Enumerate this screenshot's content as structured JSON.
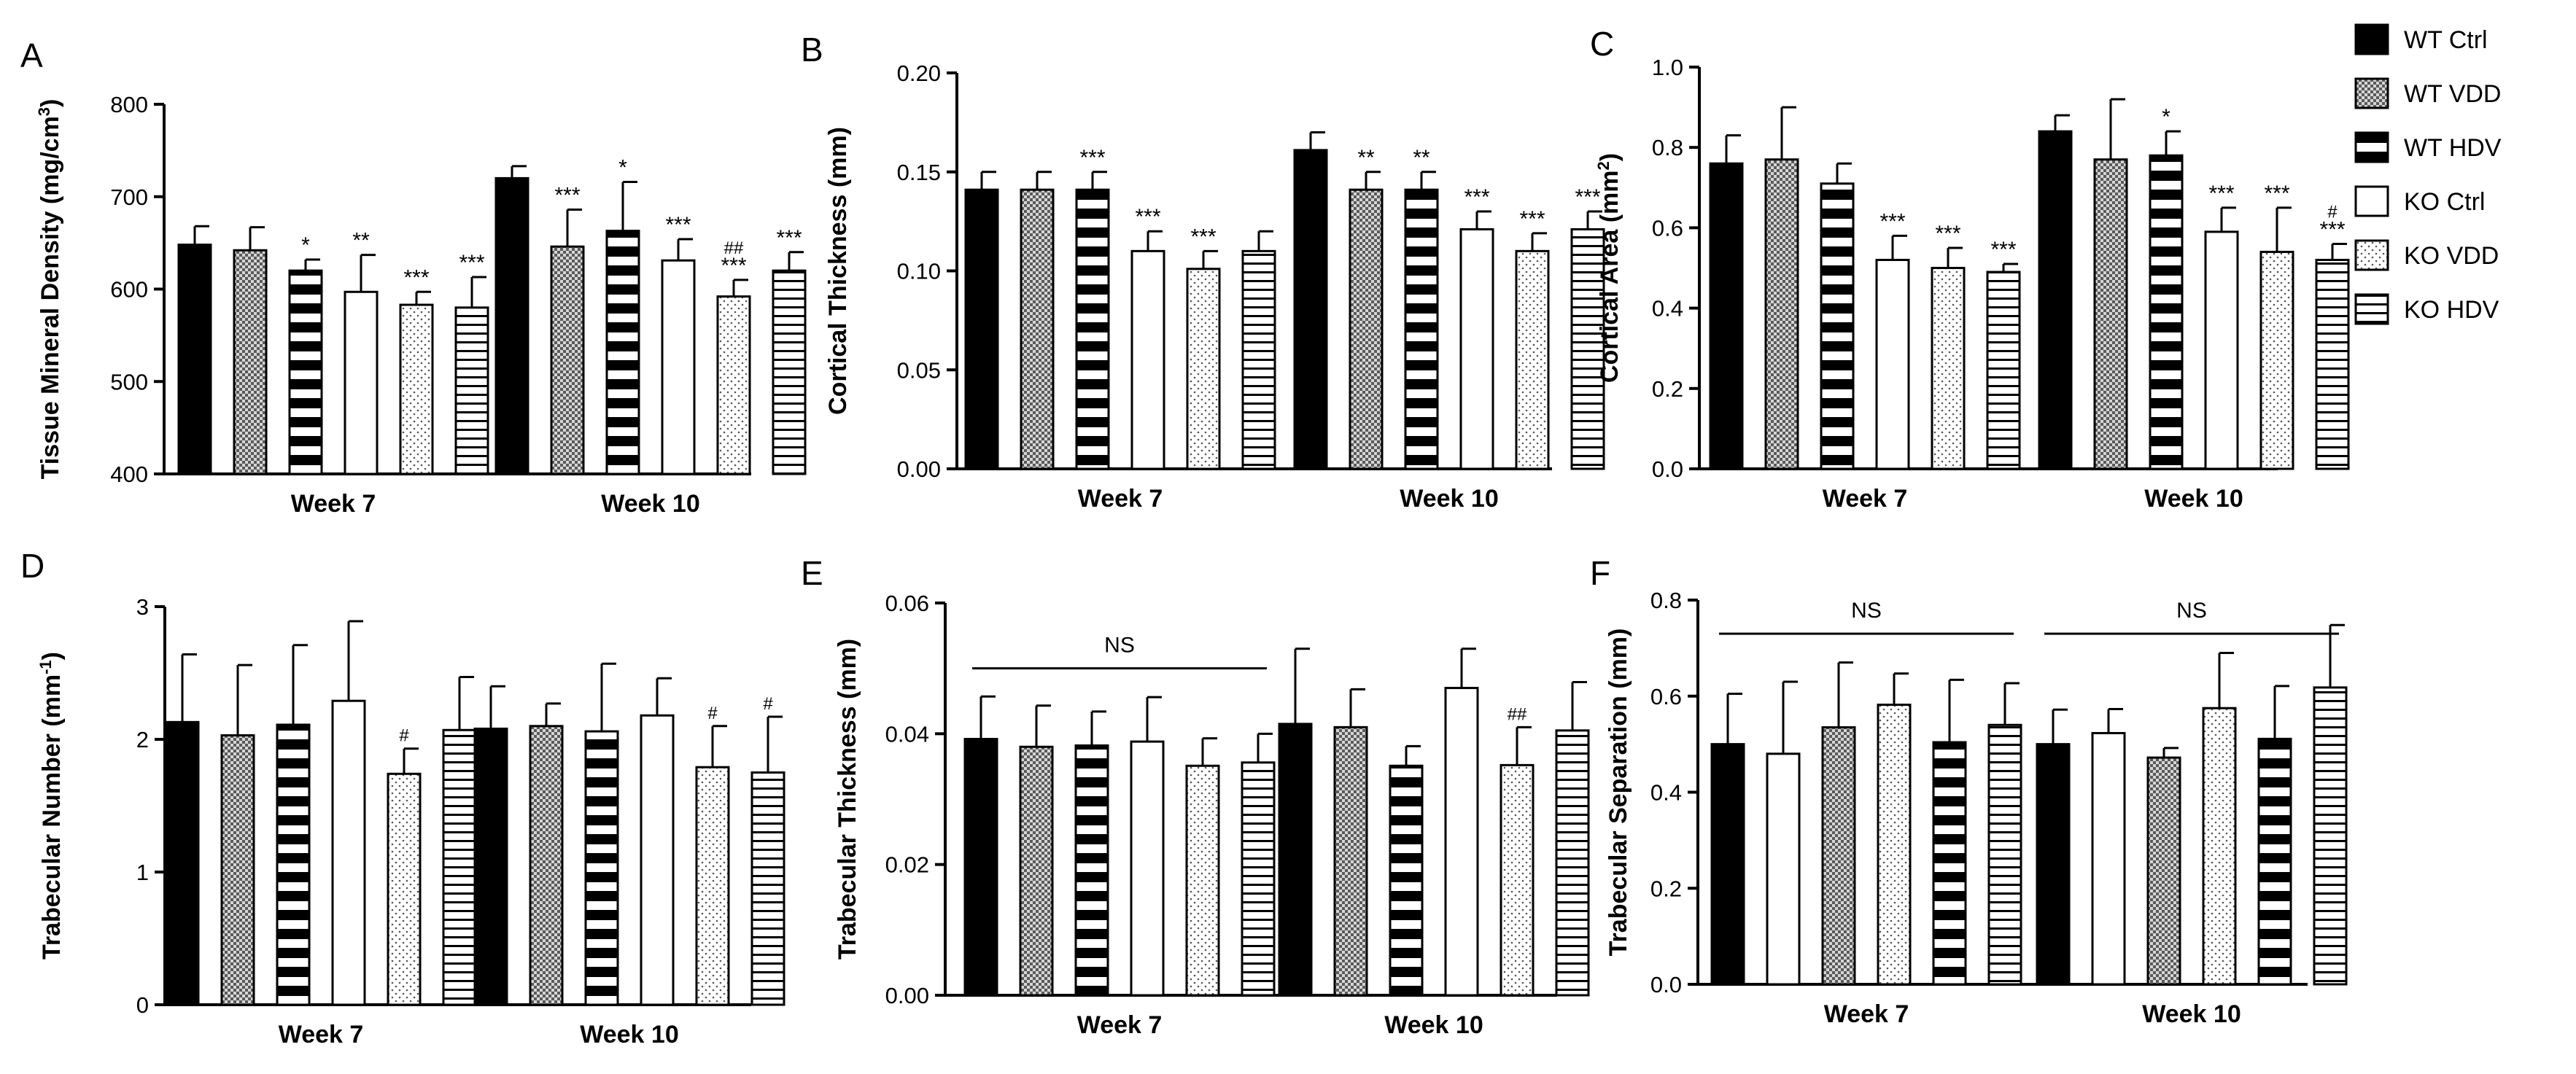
{
  "group_names": [
    "WT Ctrl",
    "WT VDD",
    "WT HDV",
    "KO Ctrl",
    "KO VDD",
    "KO HDV"
  ],
  "legend": {
    "entries": [
      {
        "label": "WT Ctrl",
        "pattern": "black"
      },
      {
        "label": "WT VDD",
        "pattern": "checker"
      },
      {
        "label": "WT HDV",
        "pattern": "hstripe-bold"
      },
      {
        "label": "KO Ctrl",
        "pattern": "white"
      },
      {
        "label": "KO VDD",
        "pattern": "dots"
      },
      {
        "label": "KO HDV",
        "pattern": "hstripe-thin"
      }
    ]
  },
  "colors": {
    "ink": "#000000",
    "background": "#ffffff"
  },
  "chart_data": [
    {
      "panel": "A",
      "type": "bar",
      "ylabel": "Tissue Mineral Density (mg/cm",
      "ylabel_sup": "3",
      "ylabel_suffix": ")",
      "ylim": [
        400,
        800
      ],
      "yticks": [
        "400",
        "500",
        "600",
        "700",
        "800"
      ],
      "categories": [
        "Week 7",
        "Week 10"
      ],
      "series_order": [
        "black",
        "checker",
        "hstripe-bold",
        "white",
        "dots",
        "hstripe-thin"
      ],
      "values": [
        [
          648,
          642,
          620,
          597,
          583,
          580
        ],
        [
          720,
          646,
          663,
          631,
          592,
          620
        ]
      ],
      "errors": [
        [
          20,
          25,
          12,
          40,
          14,
          33
        ],
        [
          13,
          40,
          53,
          23,
          18,
          20
        ]
      ],
      "annotations": [
        [
          "",
          "",
          "*",
          "**",
          "***",
          "***"
        ],
        [
          "",
          "***",
          "*",
          "***",
          "##\n***",
          "***"
        ]
      ],
      "ns_lines": []
    },
    {
      "panel": "B",
      "type": "bar",
      "ylabel": "Cortical Thickness (mm)",
      "ylabel_sup": "",
      "ylabel_suffix": "",
      "ylim": [
        0,
        0.2
      ],
      "yticks": [
        "0.00",
        "0.05",
        "0.10",
        "0.15",
        "0.20"
      ],
      "categories": [
        "Week 7",
        "Week 10"
      ],
      "series_order": [
        "black",
        "checker",
        "hstripe-bold",
        "white",
        "dots",
        "hstripe-thin"
      ],
      "values": [
        [
          0.141,
          0.141,
          0.141,
          0.11,
          0.101,
          0.11
        ],
        [
          0.161,
          0.141,
          0.141,
          0.121,
          0.11,
          0.121
        ]
      ],
      "errors": [
        [
          0.009,
          0.009,
          0.009,
          0.01,
          0.009,
          0.01
        ],
        [
          0.009,
          0.009,
          0.009,
          0.009,
          0.009,
          0.009
        ]
      ],
      "annotations": [
        [
          "",
          "",
          "***",
          "***",
          "***",
          ""
        ],
        [
          "",
          "**",
          "**",
          "***",
          "***",
          "***"
        ]
      ],
      "ns_lines": []
    },
    {
      "panel": "C",
      "type": "bar",
      "ylabel": "Cortical Area (mm",
      "ylabel_sup": "2",
      "ylabel_suffix": ")",
      "ylim": [
        0,
        1.0
      ],
      "yticks": [
        "0.0",
        "0.2",
        "0.4",
        "0.6",
        "0.8",
        "1.0"
      ],
      "categories": [
        "Week 7",
        "Week 10"
      ],
      "series_order": [
        "black",
        "checker",
        "hstripe-bold",
        "white",
        "dots",
        "hstripe-thin"
      ],
      "values": [
        [
          0.76,
          0.77,
          0.71,
          0.52,
          0.5,
          0.49
        ],
        [
          0.84,
          0.77,
          0.78,
          0.59,
          0.54,
          0.52
        ]
      ],
      "errors": [
        [
          0.07,
          0.13,
          0.05,
          0.06,
          0.05,
          0.02
        ],
        [
          0.04,
          0.15,
          0.06,
          0.06,
          0.11,
          0.04
        ]
      ],
      "annotations": [
        [
          "",
          "",
          "",
          "***",
          "***",
          "***"
        ],
        [
          "",
          "",
          "*",
          "***",
          "***",
          "#\n***"
        ]
      ],
      "ns_lines": []
    },
    {
      "panel": "D",
      "type": "bar",
      "ylabel": "Trabecular Number (mm",
      "ylabel_sup": "-1",
      "ylabel_suffix": ")",
      "ylim": [
        0,
        3
      ],
      "yticks": [
        "0",
        "1",
        "2",
        "3"
      ],
      "categories": [
        "Week 7",
        "Week 10"
      ],
      "series_order": [
        "black",
        "checker",
        "hstripe-bold",
        "white",
        "dots",
        "hstripe-thin"
      ],
      "values": [
        [
          2.13,
          2.03,
          2.11,
          2.29,
          1.74,
          2.07
        ],
        [
          2.08,
          2.1,
          2.06,
          2.18,
          1.79,
          1.75
        ]
      ],
      "errors": [
        [
          0.51,
          0.53,
          0.6,
          0.6,
          0.19,
          0.4
        ],
        [
          0.32,
          0.17,
          0.51,
          0.28,
          0.31,
          0.42
        ]
      ],
      "annotations": [
        [
          "",
          "",
          "",
          "",
          "#",
          ""
        ],
        [
          "",
          "",
          "",
          "",
          "#",
          "#"
        ]
      ],
      "ns_lines": []
    },
    {
      "panel": "E",
      "type": "bar",
      "ylabel": "Trabecular Thickness (mm)",
      "ylabel_sup": "",
      "ylabel_suffix": "",
      "ylim": [
        0,
        0.06
      ],
      "yticks": [
        "0.00",
        "0.02",
        "0.04",
        "0.06"
      ],
      "categories": [
        "Week 7",
        "Week 10"
      ],
      "series_order": [
        "black",
        "checker",
        "hstripe-bold",
        "white",
        "dots",
        "hstripe-thin"
      ],
      "values": [
        [
          0.0392,
          0.038,
          0.0382,
          0.0388,
          0.0351,
          0.0356
        ],
        [
          0.0415,
          0.041,
          0.0351,
          0.047,
          0.0352,
          0.0405
        ]
      ],
      "errors": [
        [
          0.0065,
          0.0063,
          0.0052,
          0.0068,
          0.0042,
          0.0044
        ],
        [
          0.0115,
          0.0058,
          0.003,
          0.006,
          0.0058,
          0.0074
        ]
      ],
      "annotations": [
        [
          "",
          "",
          "",
          "",
          "",
          ""
        ],
        [
          "",
          "",
          "",
          "",
          "##",
          ""
        ]
      ],
      "ns_lines": [
        {
          "label": "NS",
          "group": 0,
          "y": 0.05
        }
      ]
    },
    {
      "panel": "F",
      "type": "bar",
      "ylabel": "Trabecular Separation (mm)",
      "ylabel_sup": "",
      "ylabel_suffix": "",
      "ylim": [
        0,
        0.8
      ],
      "yticks": [
        "0.0",
        "0.2",
        "0.4",
        "0.6",
        "0.8"
      ],
      "categories": [
        "Week 7",
        "Week 10"
      ],
      "series_order": [
        "black",
        "white",
        "checker",
        "dots",
        "hstripe-bold",
        "hstripe-thin"
      ],
      "values": [
        [
          0.5,
          0.48,
          0.535,
          0.582,
          0.504,
          0.54
        ],
        [
          0.5,
          0.523,
          0.472,
          0.575,
          0.511,
          0.618
        ]
      ],
      "errors": [
        [
          0.105,
          0.15,
          0.135,
          0.065,
          0.13,
          0.087
        ],
        [
          0.072,
          0.05,
          0.02,
          0.115,
          0.11,
          0.13
        ]
      ],
      "annotations": [
        [
          "",
          "",
          "",
          "",
          "",
          ""
        ],
        [
          "",
          "",
          "",
          "",
          "",
          ""
        ]
      ],
      "ns_lines": [
        {
          "label": "NS",
          "group": 0,
          "y": 0.73
        },
        {
          "label": "NS",
          "group": 1,
          "y": 0.73
        }
      ]
    }
  ]
}
